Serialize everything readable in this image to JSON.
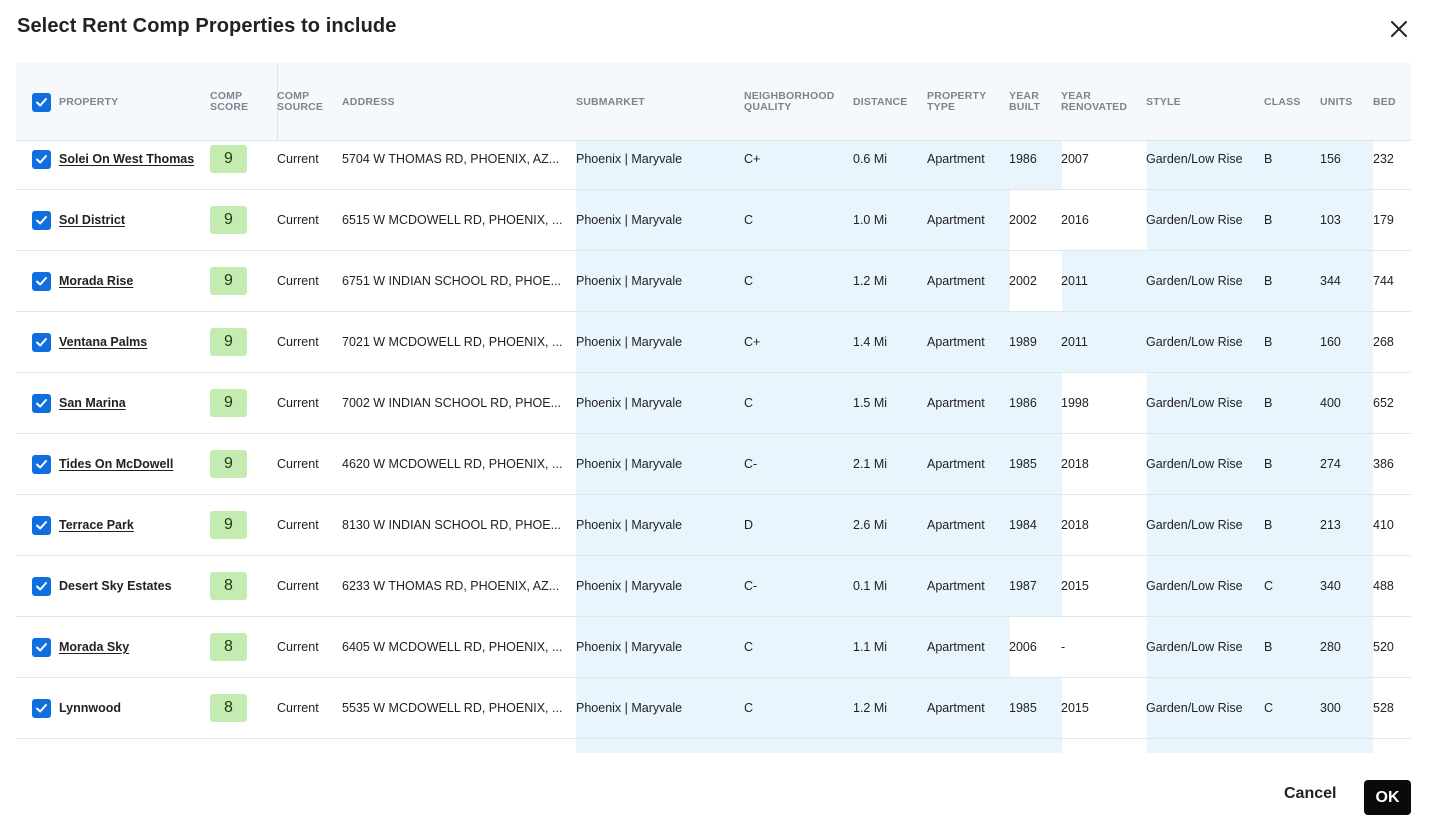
{
  "dialog": {
    "title": "Select Rent Comp Properties to include",
    "cancel_label": "Cancel",
    "ok_label": "OK"
  },
  "columns": [
    "PROPERTY",
    "COMP SCORE",
    "COMP SOURCE",
    "ADDRESS",
    "SUBMARKET",
    "NEIGHBORHOOD QUALITY",
    "DISTANCE",
    "PROPERTY TYPE",
    "YEAR BUILT",
    "YEAR RENOVATED",
    "STYLE",
    "CLASS",
    "UNITS",
    "BED"
  ],
  "rows": [
    {
      "name": "Solei On West Thomas",
      "linked": true,
      "score": "9",
      "source": "Current",
      "address": "5704 W THOMAS RD, PHOENIX, AZ...",
      "submarket": "Phoenix | Maryvale",
      "quality": "C+",
      "distance": "0.6 Mi",
      "type": "Apartment",
      "built": "1986",
      "renovated": "2007",
      "style": "Garden/Low Rise",
      "class": "B",
      "units": "156",
      "beds": "232"
    },
    {
      "name": "Sol District",
      "linked": true,
      "score": "9",
      "source": "Current",
      "address": "6515 W MCDOWELL RD, PHOENIX, ...",
      "submarket": "Phoenix | Maryvale",
      "quality": "C",
      "distance": "1.0 Mi",
      "type": "Apartment",
      "built": "2002",
      "renovated": "2016",
      "style": "Garden/Low Rise",
      "class": "B",
      "units": "103",
      "beds": "179"
    },
    {
      "name": "Morada Rise",
      "linked": true,
      "score": "9",
      "source": "Current",
      "address": "6751 W INDIAN SCHOOL RD, PHOE...",
      "submarket": "Phoenix | Maryvale",
      "quality": "C",
      "distance": "1.2 Mi",
      "type": "Apartment",
      "built": "2002",
      "renovated": "2011",
      "style": "Garden/Low Rise",
      "class": "B",
      "units": "344",
      "beds": "744"
    },
    {
      "name": "Ventana Palms",
      "linked": true,
      "score": "9",
      "source": "Current",
      "address": "7021 W MCDOWELL RD, PHOENIX, ...",
      "submarket": "Phoenix | Maryvale",
      "quality": "C+",
      "distance": "1.4 Mi",
      "type": "Apartment",
      "built": "1989",
      "renovated": "2011",
      "style": "Garden/Low Rise",
      "class": "B",
      "units": "160",
      "beds": "268"
    },
    {
      "name": "San Marina",
      "linked": true,
      "score": "9",
      "source": "Current",
      "address": "7002 W INDIAN SCHOOL RD, PHOE...",
      "submarket": "Phoenix | Maryvale",
      "quality": "C",
      "distance": "1.5 Mi",
      "type": "Apartment",
      "built": "1986",
      "renovated": "1998",
      "style": "Garden/Low Rise",
      "class": "B",
      "units": "400",
      "beds": "652"
    },
    {
      "name": "Tides On McDowell",
      "linked": true,
      "score": "9",
      "source": "Current",
      "address": "4620 W MCDOWELL RD, PHOENIX, ...",
      "submarket": "Phoenix | Maryvale",
      "quality": "C-",
      "distance": "2.1 Mi",
      "type": "Apartment",
      "built": "1985",
      "renovated": "2018",
      "style": "Garden/Low Rise",
      "class": "B",
      "units": "274",
      "beds": "386"
    },
    {
      "name": "Terrace Park",
      "linked": true,
      "score": "9",
      "source": "Current",
      "address": "8130 W INDIAN SCHOOL RD, PHOE...",
      "submarket": "Phoenix | Maryvale",
      "quality": "D",
      "distance": "2.6 Mi",
      "type": "Apartment",
      "built": "1984",
      "renovated": "2018",
      "style": "Garden/Low Rise",
      "class": "B",
      "units": "213",
      "beds": "410"
    },
    {
      "name": "Desert Sky Estates",
      "linked": false,
      "score": "8",
      "source": "Current",
      "address": "6233 W THOMAS RD, PHOENIX, AZ...",
      "submarket": "Phoenix | Maryvale",
      "quality": "C-",
      "distance": "0.1 Mi",
      "type": "Apartment",
      "built": "1987",
      "renovated": "2015",
      "style": "Garden/Low Rise",
      "class": "C",
      "units": "340",
      "beds": "488"
    },
    {
      "name": "Morada Sky",
      "linked": true,
      "score": "8",
      "source": "Current",
      "address": "6405 W MCDOWELL RD, PHOENIX, ...",
      "submarket": "Phoenix | Maryvale",
      "quality": "C",
      "distance": "1.1 Mi",
      "type": "Apartment",
      "built": "2006",
      "renovated": "-",
      "style": "Garden/Low Rise",
      "class": "B",
      "units": "280",
      "beds": "520"
    },
    {
      "name": "Lynnwood",
      "linked": false,
      "score": "8",
      "source": "Current",
      "address": "5535 W MCDOWELL RD, PHOENIX, ...",
      "submarket": "Phoenix | Maryvale",
      "quality": "C",
      "distance": "1.2 Mi",
      "type": "Apartment",
      "built": "1985",
      "renovated": "2015",
      "style": "Garden/Low Rise",
      "class": "C",
      "units": "300",
      "beds": "528"
    }
  ],
  "colors": {
    "checkbox": "#0f6fde",
    "score_badge": "#c4ecb0",
    "highlight": "#e9f5fc",
    "ok_button": "#0a0a0a"
  }
}
